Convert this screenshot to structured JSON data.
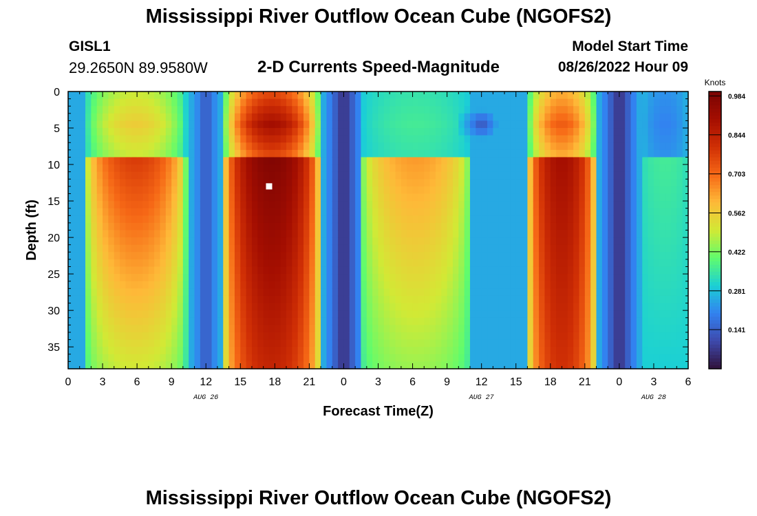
{
  "header": {
    "title": "Mississippi River Outflow Ocean Cube (NGOFS2)",
    "station_id": "GISL1",
    "station_coords": "29.2650N  89.9580W",
    "subtitle": "2-D Currents Speed-Magnitude",
    "model_start_label": "Model Start Time",
    "model_start_value": "08/26/2022 Hour 09"
  },
  "footer": {
    "repeat_title": "Mississippi River Outflow Ocean Cube (NGOFS2)"
  },
  "chart_data": {
    "type": "heatmap",
    "title": "2-D Currents Speed-Magnitude",
    "xlabel": "Forecast Time(Z)",
    "ylabel": "Depth (ft)",
    "x_range_hours": [
      0,
      54
    ],
    "x_tick_hours": [
      0,
      3,
      6,
      9,
      12,
      15,
      18,
      21,
      24,
      27,
      30,
      33,
      36,
      39,
      42,
      45,
      48,
      51,
      54
    ],
    "x_tick_labels": [
      "0",
      "3",
      "6",
      "9",
      "12",
      "15",
      "18",
      "21",
      "0",
      "3",
      "6",
      "9",
      "12",
      "15",
      "18",
      "21",
      "0",
      "3",
      "6"
    ],
    "date_labels": [
      {
        "text": "AUG 26",
        "hour": 12
      },
      {
        "text": "AUG 27",
        "hour": 36
      },
      {
        "text": "AUG 28",
        "hour": 51
      }
    ],
    "y_range_ft": [
      0,
      38
    ],
    "y_ticks": [
      0,
      5,
      10,
      15,
      20,
      25,
      30,
      35
    ],
    "y_tick_labels": [
      "0",
      "5",
      "10",
      "15",
      "20",
      "25",
      "30",
      "35"
    ],
    "colorbar": {
      "title": "Knots",
      "range": [
        0.0,
        1.0
      ],
      "ticks": [
        0.141,
        0.281,
        0.422,
        0.562,
        0.703,
        0.844,
        0.984
      ],
      "tick_labels": [
        "0.141",
        "0.281",
        "0.422",
        "0.562",
        "0.703",
        "0.844",
        "0.984"
      ]
    },
    "speed_model_knots": {
      "description": "Approximate speed field: layered tidal pulses (surface layer 0-9 ft, lower layer 9-38 ft)",
      "surface_layer_depth_ft": [
        0,
        9
      ],
      "lower_layer_depth_ft": [
        9,
        38
      ],
      "pulses": [
        {
          "start_h": 1.5,
          "end_h": 10.3,
          "surface_peak": 0.56,
          "lower_peak": 0.78,
          "lower_decay_to": 0.5
        },
        {
          "start_h": 13.5,
          "end_h": 22.0,
          "surface_peak": 0.9,
          "lower_peak": 0.98,
          "lower_decay_to": 0.83
        },
        {
          "start_h": 25.5,
          "end_h": 35.0,
          "surface_peak": 0.36,
          "lower_peak": 0.64,
          "lower_decay_to": 0.45
        },
        {
          "start_h": 40.0,
          "end_h": 46.0,
          "surface_peak": 0.72,
          "lower_peak": 0.9,
          "lower_decay_to": 0.8
        },
        {
          "start_h": 50.0,
          "end_h": 54.0,
          "surface_peak": 0.2,
          "lower_peak": 0.36,
          "lower_decay_to": 0.3
        }
      ],
      "minima": [
        {
          "hour": 12.0,
          "speed": 0.12
        },
        {
          "hour": 24.0,
          "speed": 0.05
        },
        {
          "hour": 48.0,
          "speed": 0.05
        }
      ],
      "surface_eddy": {
        "hour": 36.0,
        "depth_ft": 4.5,
        "speed": 0.12
      }
    },
    "marker": {
      "hour": 17.5,
      "depth_ft": 13,
      "color": "#ffffff"
    }
  }
}
